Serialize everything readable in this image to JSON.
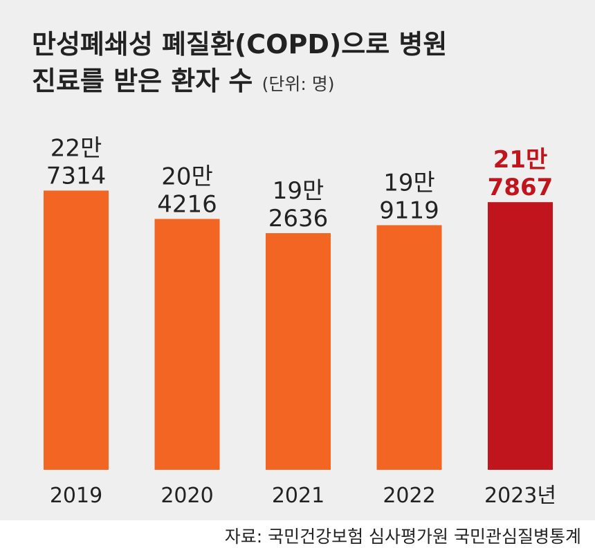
{
  "title_line1": "만성폐쇄성 폐질환(COPD)으로 병원",
  "title_line2": "진료를 받은 환자 수",
  "unit": "(단위: 명)",
  "source": "자료: 국민건강보험 심사평가원 국민관심질병통계",
  "colors": {
    "bar": "#f26522",
    "highlight": "#c1151d",
    "text": "#222222",
    "panel": "#efefef"
  },
  "chart_data": {
    "type": "bar",
    "title": "만성폐쇄성 폐질환(COPD)으로 병원 진료를 받은 환자 수",
    "categories": [
      "2019",
      "2020",
      "2021",
      "2022",
      "2023년"
    ],
    "values": [
      227314,
      204216,
      192636,
      199119,
      217867
    ],
    "value_labels": [
      [
        "22만",
        "7314"
      ],
      [
        "20만",
        "4216"
      ],
      [
        "19만",
        "2636"
      ],
      [
        "19만",
        "9119"
      ],
      [
        "21만",
        "7867"
      ]
    ],
    "highlight_index": 4,
    "xlabel": "",
    "ylabel": "",
    "grid": false,
    "legend": "none"
  }
}
